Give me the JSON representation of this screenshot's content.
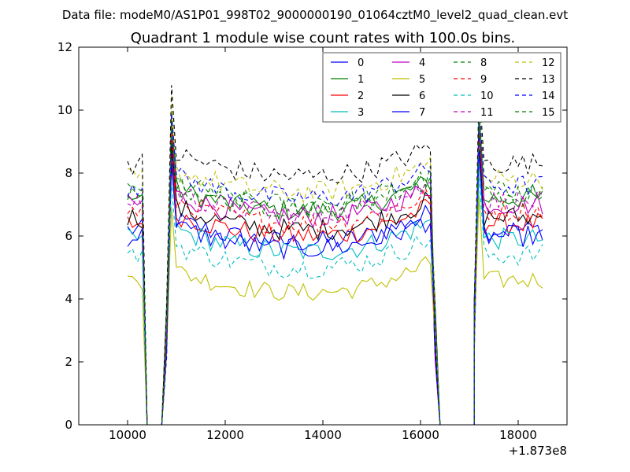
{
  "header": {
    "data_file": "Data file: modeM0/AS1P01_998T02_9000000190_01064cztM0_level2_quad_clean.evt"
  },
  "chart_data": {
    "type": "line",
    "title": "Quadrant 1 module wise count rates with 100.0s bins.",
    "xlabel": "",
    "ylabel": "",
    "x_offset_label": "+1.873e8",
    "xlim": [
      9000,
      19000
    ],
    "ylim": [
      0,
      12
    ],
    "xticks": [
      10000,
      12000,
      14000,
      16000,
      18000
    ],
    "yticks": [
      0,
      2,
      4,
      6,
      8,
      10,
      12
    ],
    "grid": false,
    "legend_position": "top-right",
    "legend_columns": 4,
    "segments": [
      {
        "x_start": 10000,
        "x_step": 100,
        "count": 4
      },
      {
        "x_start": 10400,
        "x_step": 100,
        "count": 4,
        "zero": true
      },
      {
        "x_start": 10800,
        "x_step": 100,
        "count": 56
      },
      {
        "x_start": 16400,
        "x_step": 100,
        "count": 4,
        "zero": true
      },
      {
        "x_start": 16800,
        "x_step": 100,
        "count": 4,
        "zero": true
      },
      {
        "x_start": 17100,
        "x_step": 100,
        "count": 15
      }
    ],
    "series": [
      {
        "name": "0",
        "color": "#0000ff",
        "dash": "solid",
        "base": 6.2,
        "noise": 0.35
      },
      {
        "name": "1",
        "color": "#008000",
        "dash": "solid",
        "base": 7.2,
        "noise": 0.35
      },
      {
        "name": "2",
        "color": "#ff0000",
        "dash": "solid",
        "base": 6.4,
        "noise": 0.35
      },
      {
        "name": "3",
        "color": "#00bfbf",
        "dash": "solid",
        "base": 5.9,
        "noise": 0.35
      },
      {
        "name": "4",
        "color": "#bf00bf",
        "dash": "solid",
        "base": 7.0,
        "noise": 0.35
      },
      {
        "name": "5",
        "color": "#bfbf00",
        "dash": "solid",
        "base": 4.6,
        "noise": 0.3
      },
      {
        "name": "6",
        "color": "#000000",
        "dash": "solid",
        "base": 6.6,
        "noise": 0.35
      },
      {
        "name": "7",
        "color": "#0000ff",
        "dash": "solid",
        "base": 6.0,
        "noise": 0.35
      },
      {
        "name": "8",
        "color": "#008000",
        "dash": "dashed",
        "base": 7.4,
        "noise": 0.35
      },
      {
        "name": "9",
        "color": "#ff0000",
        "dash": "dashed",
        "base": 6.8,
        "noise": 0.35
      },
      {
        "name": "10",
        "color": "#00bfbf",
        "dash": "dashed",
        "base": 5.4,
        "noise": 0.35
      },
      {
        "name": "11",
        "color": "#bf00bf",
        "dash": "dashed",
        "base": 7.1,
        "noise": 0.35
      },
      {
        "name": "12",
        "color": "#bfbf00",
        "dash": "dashed",
        "base": 7.8,
        "noise": 0.35
      },
      {
        "name": "13",
        "color": "#000000",
        "dash": "dashed",
        "base": 8.3,
        "noise": 0.35
      },
      {
        "name": "14",
        "color": "#0000ff",
        "dash": "dashed",
        "base": 7.6,
        "noise": 0.35
      },
      {
        "name": "15",
        "color": "#008000",
        "dash": "dashed",
        "base": 7.3,
        "noise": 0.35
      }
    ]
  }
}
